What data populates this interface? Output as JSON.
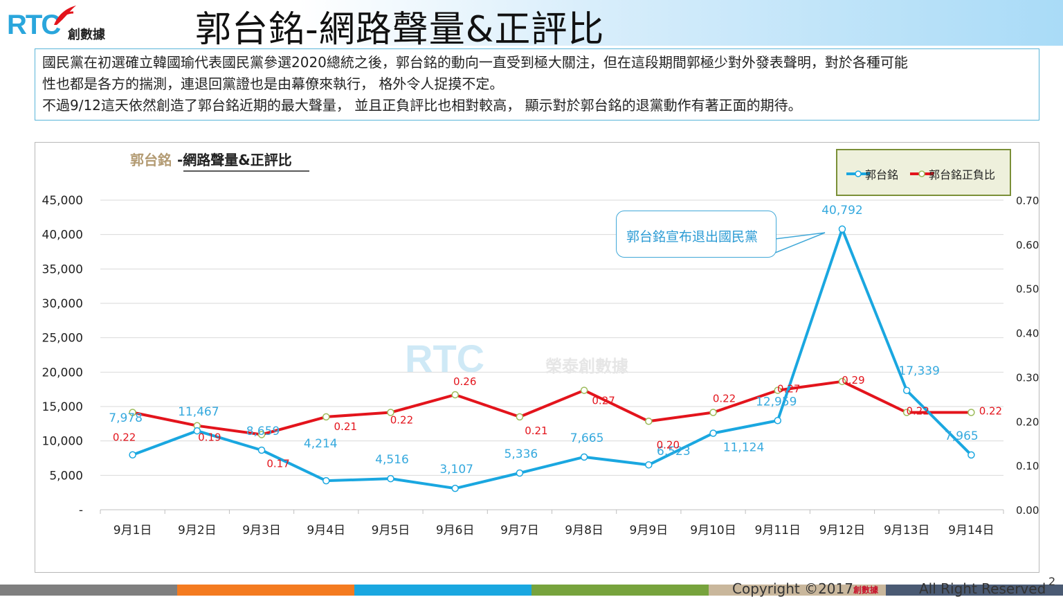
{
  "header": {
    "logo_text": "RTC",
    "logo_cn": "創數據",
    "title": "郭台銘-網路聲量&正評比"
  },
  "description": {
    "line1": "國民黨在初選確立韓國瑜代表國民黨參選2020總統之後，郭台銘的動向一直受到極大關注，但在這段期間郭極少對外發表聲明，對於各種可能",
    "line2": "性也都是各方的揣測，連退回黨證也是由幕僚來執行， 格外令人捉摸不定。",
    "line3": "不過9/12這天依然創造了郭台銘近期的最大聲量， 並且正負評比也相對較高， 顯示對於郭台銘的退黨動作有著正面的期待。"
  },
  "watermark": {
    "logo": "RTC",
    "text": "榮泰創數據"
  },
  "callout": {
    "text": "郭台銘宣布退出國民黨"
  },
  "chart_data": {
    "type": "line",
    "title_part1": "郭台銘",
    "title_part2": "-網路聲量&正評比",
    "categories": [
      "9月1日",
      "9月2日",
      "9月3日",
      "9月4日",
      "9月5日",
      "9月6日",
      "9月7日",
      "9月8日",
      "9月9日",
      "9月10日",
      "9月11日",
      "9月12日",
      "9月13日",
      "9月14日"
    ],
    "series": [
      {
        "name": "郭台銘",
        "axis": "left",
        "color": "#1aa7e0",
        "values": [
          7978,
          11467,
          8659,
          4214,
          4516,
          3107,
          5336,
          7665,
          6523,
          11124,
          12959,
          40792,
          17339,
          7965
        ],
        "labels": [
          "7,978",
          "11,467",
          "8,659",
          "4,214",
          "4,516",
          "3,107",
          "5,336",
          "7,665",
          "6,523",
          "11,124",
          "12,959",
          "40,792",
          "17,339",
          "7,965"
        ]
      },
      {
        "name": "郭台銘正負比",
        "axis": "right",
        "color": "#e3141c",
        "values": [
          0.22,
          0.19,
          0.17,
          0.21,
          0.22,
          0.26,
          0.21,
          0.27,
          0.2,
          0.22,
          0.27,
          0.29,
          0.22,
          0.22
        ],
        "labels": [
          "0.22",
          "0.19",
          "0.17",
          "0.21",
          "0.22",
          "0.26",
          "0.21",
          "0.27",
          "0.20",
          "0.22",
          "0.27",
          "0.29",
          "0.22",
          "0.22"
        ]
      }
    ],
    "y_left": {
      "range": [
        0,
        45000
      ],
      "ticks": [
        0,
        5000,
        10000,
        15000,
        20000,
        25000,
        30000,
        35000,
        40000,
        45000
      ],
      "tick_labels": [
        "-",
        "5,000",
        "10,000",
        "15,000",
        "20,000",
        "25,000",
        "30,000",
        "35,000",
        "40,000",
        "45,000"
      ]
    },
    "y_right": {
      "range": [
        0,
        0.7
      ],
      "ticks": [
        0,
        0.1,
        0.2,
        0.3,
        0.4,
        0.5,
        0.6,
        0.7
      ],
      "tick_labels": [
        "0.00",
        "0.10",
        "0.20",
        "0.30",
        "0.40",
        "0.50",
        "0.60",
        "0.70"
      ]
    },
    "grid": true,
    "legend_position": "top-right"
  },
  "footer": {
    "copyright": "Copyright ©2017",
    "logo_cn": "創數據",
    "rights": "All Right Reserved",
    "page_number": "2",
    "colors": [
      "#7f7f7f",
      "#f47b20",
      "#1aa7e0",
      "#77a33d",
      "#c9b79c",
      "#4a5a73"
    ]
  }
}
